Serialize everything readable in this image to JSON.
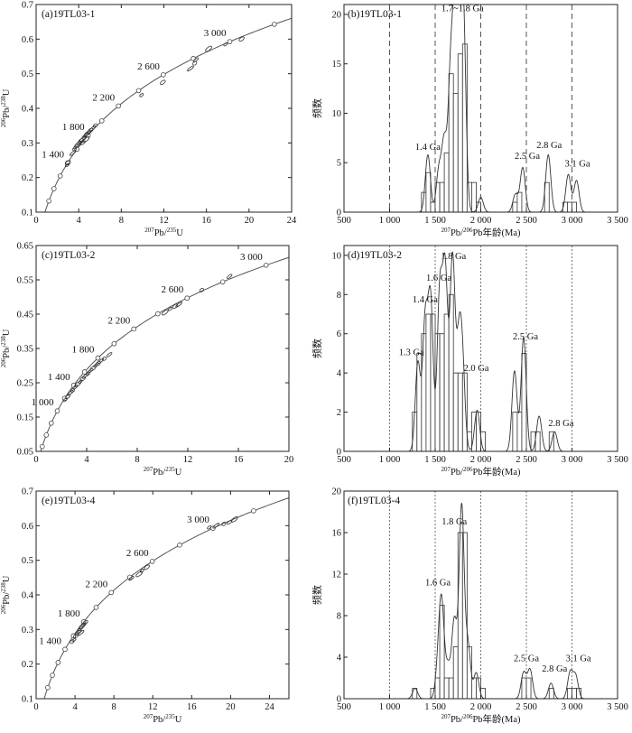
{
  "chart_data": [
    {
      "type": "scatter",
      "id": "a",
      "title": "(a)19TL03-1",
      "xlabel": "207Pb/235U",
      "ylabel": "206Pb/238U",
      "xlim": [
        0,
        24
      ],
      "ylim": [
        0.1,
        0.7
      ],
      "xticks": [
        0,
        4,
        8,
        12,
        16,
        20,
        24
      ],
      "yticks": [
        0.1,
        0.2,
        0.3,
        0.4,
        0.5,
        0.6,
        0.7
      ],
      "concordia_ages_ma": [
        200,
        400,
        600,
        800,
        1000,
        1200,
        1400,
        1600,
        1800,
        2000,
        2200,
        2400,
        2600,
        2800,
        3000,
        3200
      ],
      "age_labels": [
        {
          "text": "1 400",
          "age": 1400
        },
        {
          "text": "1 800",
          "age": 1800
        },
        {
          "text": "2 200",
          "age": 2200
        },
        {
          "text": "2 600",
          "age": 2600
        },
        {
          "text": "3 000",
          "age": 3000
        }
      ],
      "ellipses": [
        [
          2.92,
          0.236
        ],
        [
          2.98,
          0.243
        ],
        [
          3.45,
          0.271
        ],
        [
          3.62,
          0.283
        ],
        [
          3.75,
          0.289
        ],
        [
          3.92,
          0.296
        ],
        [
          4.05,
          0.301
        ],
        [
          4.2,
          0.306
        ],
        [
          4.35,
          0.311
        ],
        [
          4.5,
          0.316
        ],
        [
          4.65,
          0.322
        ],
        [
          4.8,
          0.327
        ],
        [
          4.95,
          0.331
        ],
        [
          5.1,
          0.336
        ],
        [
          5.3,
          0.342
        ],
        [
          5.55,
          0.35
        ],
        [
          4.4,
          0.3
        ],
        [
          4.7,
          0.31
        ],
        [
          9.9,
          0.438
        ],
        [
          11.9,
          0.475
        ],
        [
          14.5,
          0.515
        ],
        [
          14.9,
          0.53
        ],
        [
          15.0,
          0.54
        ],
        [
          16.2,
          0.572
        ],
        [
          17.8,
          0.585
        ],
        [
          19.3,
          0.6
        ]
      ]
    },
    {
      "type": "bar",
      "id": "b",
      "title": "(b)19TL03-1",
      "xlabel": "207Pb/206Pb年龄(Ma)",
      "ylabel": "频数",
      "xlim": [
        500,
        3500
      ],
      "ylim": [
        0,
        21
      ],
      "xticks": [
        500,
        1000,
        1500,
        2000,
        2500,
        3000,
        3500
      ],
      "xtick_labels": [
        "500",
        "1 000",
        "1 500",
        "2 000",
        "2 500",
        "3 000",
        "3 500"
      ],
      "yticks": [
        0,
        5,
        10,
        15,
        20
      ],
      "vlines": [
        1000,
        1500,
        2000,
        2500,
        3000
      ],
      "bin_width": 50,
      "bins": [
        [
          1350,
          2
        ],
        [
          1400,
          4
        ],
        [
          1450,
          1
        ],
        [
          1500,
          3
        ],
        [
          1550,
          3
        ],
        [
          1600,
          6
        ],
        [
          1650,
          14
        ],
        [
          1700,
          12
        ],
        [
          1750,
          16
        ],
        [
          1800,
          17
        ],
        [
          1850,
          3
        ],
        [
          1900,
          3
        ],
        [
          1950,
          1
        ],
        [
          2350,
          1
        ],
        [
          2400,
          2
        ],
        [
          2700,
          3
        ],
        [
          2900,
          1
        ],
        [
          2950,
          1
        ],
        [
          3000,
          1
        ]
      ],
      "peaks": [
        [
          1420,
          5.8
        ],
        [
          1540,
          4.2
        ],
        [
          1600,
          7
        ],
        [
          1670,
          13.5
        ],
        [
          1720,
          16
        ],
        [
          1760,
          20
        ],
        [
          1810,
          18.5
        ],
        [
          2000,
          1.5
        ],
        [
          2380,
          1.8
        ],
        [
          2460,
          4.5
        ],
        [
          2740,
          5.8
        ],
        [
          2960,
          3.8
        ],
        [
          3050,
          3.2
        ]
      ],
      "annotations": [
        {
          "text": "1.4 Ga",
          "x": 1420,
          "y": 6.3
        },
        {
          "text": "1.7~1.8 Ga",
          "x": 1800,
          "y": 20.3
        },
        {
          "text": "2.5 Ga",
          "x": 2510,
          "y": 5.4
        },
        {
          "text": "2.8 Ga",
          "x": 2750,
          "y": 6.5
        },
        {
          "text": "3.1 Ga",
          "x": 3060,
          "y": 4.6
        }
      ]
    },
    {
      "type": "scatter",
      "id": "c",
      "title": "(c)19TL03-2",
      "xlabel": "207Pb/235U",
      "ylabel": "206Pb/238U",
      "xlim": [
        0,
        20
      ],
      "ylim": [
        0.05,
        0.65
      ],
      "xticks": [
        0,
        4,
        8,
        12,
        16,
        20
      ],
      "yticks": [
        0.05,
        0.15,
        0.25,
        0.35,
        0.45,
        0.55,
        0.65
      ],
      "concordia_ages_ma": [
        400,
        600,
        800,
        1000,
        1200,
        1400,
        1600,
        1800,
        2000,
        2200,
        2400,
        2600,
        2800,
        3000
      ],
      "age_labels": [
        {
          "text": "1 000",
          "age": 1000
        },
        {
          "text": "1 400",
          "age": 1400
        },
        {
          "text": "1 800",
          "age": 1800
        },
        {
          "text": "2 200",
          "age": 2200
        },
        {
          "text": "2 600",
          "age": 2600
        },
        {
          "text": "3 000",
          "age": 3000
        }
      ],
      "ellipses": [
        [
          2.3,
          0.2
        ],
        [
          2.5,
          0.21
        ],
        [
          2.7,
          0.22
        ],
        [
          2.9,
          0.228
        ],
        [
          3.1,
          0.237
        ],
        [
          3.3,
          0.246
        ],
        [
          3.5,
          0.253
        ],
        [
          3.7,
          0.262
        ],
        [
          3.9,
          0.27
        ],
        [
          4.1,
          0.277
        ],
        [
          4.3,
          0.285
        ],
        [
          4.5,
          0.292
        ],
        [
          4.7,
          0.3
        ],
        [
          4.9,
          0.306
        ],
        [
          5.1,
          0.313
        ],
        [
          5.4,
          0.32
        ],
        [
          5.8,
          0.332
        ],
        [
          10.2,
          0.455
        ],
        [
          10.6,
          0.465
        ],
        [
          11.0,
          0.473
        ],
        [
          11.3,
          0.478
        ],
        [
          13.1,
          0.52
        ],
        [
          15.3,
          0.56
        ]
      ]
    },
    {
      "type": "bar",
      "id": "d",
      "title": "(d)19TL03-2",
      "xlabel": "207Pb/206Pb年龄(Ma)",
      "ylabel": "频数",
      "xlim": [
        500,
        3500
      ],
      "ylim": [
        0,
        10.5
      ],
      "xticks": [
        500,
        1000,
        1500,
        2000,
        2500,
        3000,
        3500
      ],
      "xtick_labels": [
        "500",
        "1 000",
        "1 500",
        "2 000",
        "2 500",
        "3 000",
        "3 500"
      ],
      "yticks": [
        0,
        2,
        4,
        6,
        8,
        10
      ],
      "vlines": [
        1000,
        1500,
        2000,
        2500,
        3000
      ],
      "bin_width": 50,
      "bins": [
        [
          1250,
          2
        ],
        [
          1300,
          5
        ],
        [
          1350,
          6
        ],
        [
          1400,
          7
        ],
        [
          1450,
          7
        ],
        [
          1500,
          6
        ],
        [
          1550,
          6
        ],
        [
          1600,
          7
        ],
        [
          1650,
          8
        ],
        [
          1700,
          4
        ],
        [
          1750,
          4
        ],
        [
          1800,
          4
        ],
        [
          1850,
          1
        ],
        [
          1900,
          2
        ],
        [
          1950,
          2
        ],
        [
          2000,
          1
        ],
        [
          2350,
          2
        ],
        [
          2400,
          2
        ],
        [
          2450,
          5
        ],
        [
          2550,
          1
        ],
        [
          2600,
          1
        ],
        [
          2750,
          1
        ]
      ],
      "peaks": [
        [
          1310,
          4.5
        ],
        [
          1390,
          6.5
        ],
        [
          1450,
          7.6
        ],
        [
          1550,
          8
        ],
        [
          1610,
          9
        ],
        [
          1690,
          9.8
        ],
        [
          1760,
          5
        ],
        [
          1800,
          4
        ],
        [
          1960,
          2.1
        ],
        [
          2370,
          4.1
        ],
        [
          2470,
          5.8
        ],
        [
          2640,
          1.8
        ],
        [
          2810,
          1
        ]
      ],
      "annotations": [
        {
          "text": "1.3 Ga",
          "x": 1240,
          "y": 4.9
        },
        {
          "text": "1.4 Ga",
          "x": 1390,
          "y": 7.6
        },
        {
          "text": "1.6 Ga",
          "x": 1540,
          "y": 8.7
        },
        {
          "text": "1.8 Ga",
          "x": 1700,
          "y": 9.8
        },
        {
          "text": "2.0 Ga",
          "x": 1950,
          "y": 4.1
        },
        {
          "text": "2.5 Ga",
          "x": 2490,
          "y": 5.7
        },
        {
          "text": "2.8 Ga",
          "x": 2880,
          "y": 1.3
        }
      ]
    },
    {
      "type": "scatter",
      "id": "e",
      "title": "(e)19TL03-4",
      "xlabel": "207Pb/235U",
      "ylabel": "206Pb/238U",
      "xlim": [
        0,
        26
      ],
      "ylim": [
        0.1,
        0.7
      ],
      "xticks": [
        0,
        4,
        8,
        12,
        16,
        20,
        24
      ],
      "yticks": [
        0.1,
        0.2,
        0.3,
        0.4,
        0.5,
        0.6,
        0.7
      ],
      "concordia_ages_ma": [
        200,
        400,
        600,
        800,
        1000,
        1200,
        1400,
        1600,
        1800,
        2000,
        2200,
        2400,
        2600,
        2800,
        3000,
        3200
      ],
      "age_labels": [
        {
          "text": "1 400",
          "age": 1400
        },
        {
          "text": "1 800",
          "age": 1800
        },
        {
          "text": "2 200",
          "age": 2200
        },
        {
          "text": "2 600",
          "age": 2600
        },
        {
          "text": "3 000",
          "age": 3000
        }
      ],
      "ellipses": [
        [
          3.9,
          0.27
        ],
        [
          4.1,
          0.282
        ],
        [
          4.3,
          0.29
        ],
        [
          4.45,
          0.296
        ],
        [
          4.6,
          0.303
        ],
        [
          4.75,
          0.31
        ],
        [
          4.9,
          0.315
        ],
        [
          5.05,
          0.32
        ],
        [
          4.6,
          0.29
        ],
        [
          3.7,
          0.265
        ],
        [
          9.8,
          0.448
        ],
        [
          10.6,
          0.46
        ],
        [
          10.9,
          0.47
        ],
        [
          11.4,
          0.48
        ],
        [
          18.5,
          0.6
        ],
        [
          19.3,
          0.605
        ],
        [
          19.9,
          0.61
        ],
        [
          20.4,
          0.618
        ],
        [
          17.8,
          0.595
        ]
      ]
    },
    {
      "type": "bar",
      "id": "f",
      "title": "(f)19TL03-4",
      "xlabel": "207Pb/206Pb年龄(Ma)",
      "ylabel": "频数",
      "xlim": [
        500,
        3500
      ],
      "ylim": [
        0,
        20
      ],
      "xticks": [
        500,
        1000,
        1500,
        2000,
        2500,
        3000,
        3500
      ],
      "xtick_labels": [
        "500",
        "1 000",
        "1 500",
        "2 000",
        "2 500",
        "3 000",
        "3 500"
      ],
      "yticks": [
        0,
        4,
        8,
        12,
        16,
        20
      ],
      "vlines": [
        1000,
        1500,
        2000,
        2500,
        3000
      ],
      "bin_width": 50,
      "bins": [
        [
          1250,
          1
        ],
        [
          1450,
          1
        ],
        [
          1500,
          2
        ],
        [
          1550,
          9
        ],
        [
          1600,
          2
        ],
        [
          1650,
          2
        ],
        [
          1700,
          5
        ],
        [
          1750,
          16
        ],
        [
          1800,
          16
        ],
        [
          1850,
          5
        ],
        [
          1900,
          2
        ],
        [
          1950,
          2
        ],
        [
          2000,
          1
        ],
        [
          2450,
          2
        ],
        [
          2500,
          2
        ],
        [
          2750,
          1
        ],
        [
          2950,
          1
        ],
        [
          3000,
          1
        ],
        [
          3050,
          1
        ]
      ],
      "peaks": [
        [
          1280,
          1
        ],
        [
          1530,
          2.5
        ],
        [
          1570,
          9
        ],
        [
          1640,
          3
        ],
        [
          1710,
          7.5
        ],
        [
          1790,
          18.5
        ],
        [
          1860,
          5
        ],
        [
          1950,
          2.5
        ],
        [
          2470,
          2.5
        ],
        [
          2540,
          2.8
        ],
        [
          2770,
          1.5
        ],
        [
          2980,
          2.5
        ],
        [
          3040,
          2.2
        ]
      ],
      "annotations": [
        {
          "text": "1.6 Ga",
          "x": 1530,
          "y": 10.9
        },
        {
          "text": "1.8 Ga",
          "x": 1710,
          "y": 16.8
        },
        {
          "text": "2.5 Ga",
          "x": 2500,
          "y": 3.6
        },
        {
          "text": "2.8 Ga",
          "x": 2810,
          "y": 2.6
        },
        {
          "text": "3.1 Ga",
          "x": 3070,
          "y": 3.6
        }
      ]
    }
  ]
}
